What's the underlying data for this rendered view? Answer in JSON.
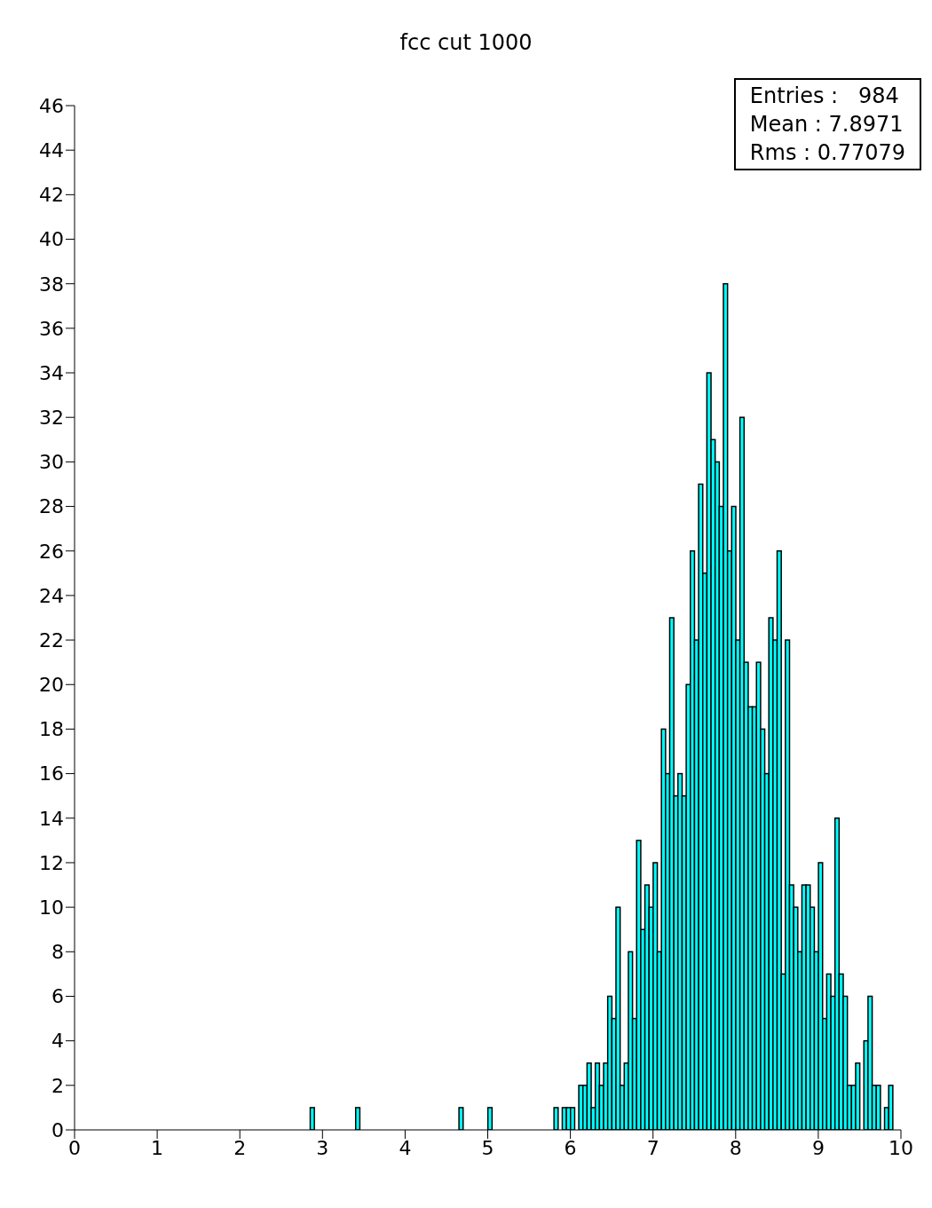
{
  "chart_data": {
    "type": "histogram",
    "title": "fcc cut 1000",
    "annotations": [
      "Entries :   984",
      "Mean : 7.8971",
      "Rms : 0.77079"
    ],
    "bins": [
      0,
      0.05,
      0.1,
      0.15,
      0.2,
      0.25,
      0.3,
      0.35,
      0.4,
      0.45,
      0.5,
      0.55,
      0.6,
      0.65,
      0.7,
      0.75,
      0.8,
      0.85,
      0.9,
      0.95,
      1,
      1.05,
      1.1,
      1.15,
      1.2,
      1.25,
      1.3,
      1.35,
      1.4,
      1.45,
      1.5,
      1.55,
      1.6,
      1.65,
      1.7,
      1.75,
      1.8,
      1.85,
      1.9,
      1.95,
      2,
      2.05,
      2.1,
      2.15,
      2.2,
      2.25,
      2.3,
      2.35,
      2.4,
      2.45,
      2.5,
      2.55,
      2.6,
      2.65,
      2.7,
      2.75,
      2.8,
      2.85,
      2.9,
      2.95,
      3,
      3.05,
      3.1,
      3.15,
      3.2,
      3.25,
      3.3,
      3.35,
      3.4,
      3.45,
      3.5,
      3.55,
      3.6,
      3.65,
      3.7,
      3.75,
      3.8,
      3.85,
      3.9,
      3.95,
      4,
      4.05,
      4.1,
      4.15,
      4.2,
      4.25,
      4.3,
      4.35,
      4.4,
      4.45,
      4.5,
      4.55,
      4.6,
      4.65,
      4.7,
      4.75,
      4.8,
      4.85,
      4.9,
      4.95,
      5,
      5.05,
      5.1,
      5.15,
      5.2,
      5.25,
      5.3,
      5.35,
      5.4,
      5.45,
      5.5,
      5.55,
      5.6,
      5.65,
      5.7,
      5.75,
      5.8,
      5.85,
      5.9,
      5.95,
      6,
      6.05,
      6.1,
      6.15,
      6.2,
      6.25,
      6.3,
      6.35,
      6.4,
      6.45,
      6.5,
      6.55,
      6.6,
      6.65,
      6.7,
      6.75,
      6.8,
      6.85,
      6.9,
      6.95,
      7,
      7.05,
      7.1,
      7.15,
      7.2,
      7.25,
      7.3,
      7.35,
      7.4,
      7.45,
      7.5,
      7.55,
      7.6,
      7.65,
      7.7,
      7.75,
      7.8,
      7.85,
      7.9,
      7.95,
      8,
      8.05,
      8.1,
      8.15,
      8.2,
      8.25,
      8.3,
      8.35,
      8.4,
      8.45,
      8.5,
      8.55,
      8.6,
      8.65,
      8.7,
      8.75,
      8.8,
      8.85,
      8.9,
      8.95,
      9,
      9.05,
      9.1,
      9.15,
      9.2,
      9.25,
      9.3,
      9.35,
      9.4,
      9.45,
      9.5,
      9.55,
      9.6,
      9.65,
      9.7,
      9.75,
      9.8,
      9.85,
      9.9,
      9.95,
      10
    ],
    "values": [
      0,
      0,
      0,
      0,
      0,
      0,
      0,
      0,
      0,
      0,
      0,
      0,
      0,
      0,
      0,
      0,
      0,
      0,
      0,
      0,
      0,
      0,
      0,
      0,
      0,
      0,
      0,
      0,
      0,
      0,
      0,
      0,
      0,
      0,
      0,
      0,
      0,
      0,
      0,
      0,
      0,
      0,
      0,
      0,
      0,
      0,
      0,
      0,
      0,
      0,
      0,
      0,
      0,
      0,
      0,
      0,
      0,
      1,
      0,
      0,
      0,
      0,
      0,
      0,
      0,
      0,
      0,
      0,
      1,
      0,
      0,
      0,
      0,
      0,
      0,
      0,
      0,
      0,
      0,
      0,
      0,
      0,
      0,
      0,
      0,
      0,
      0,
      0,
      0,
      0,
      0,
      0,
      0,
      1,
      0,
      0,
      0,
      0,
      0,
      0,
      1,
      0,
      0,
      0,
      0,
      0,
      0,
      0,
      0,
      0,
      0,
      0,
      0,
      0,
      0,
      0,
      1,
      0,
      1,
      1,
      1,
      0,
      2,
      2,
      3,
      1,
      3,
      2,
      3,
      6,
      5,
      10,
      2,
      3,
      8,
      5,
      13,
      9,
      11,
      10,
      12,
      8,
      18,
      16,
      23,
      15,
      16,
      15,
      20,
      26,
      22,
      29,
      25,
      34,
      31,
      30,
      28,
      38,
      26,
      28,
      22,
      32,
      21,
      19,
      19,
      21,
      18,
      16,
      23,
      22,
      26,
      7,
      22,
      11,
      10,
      8,
      11,
      11,
      10,
      8,
      12,
      5,
      7,
      6,
      14,
      7,
      6,
      2,
      2,
      3,
      0,
      4,
      6,
      2,
      2,
      0,
      1,
      2,
      0,
      0
    ],
    "color": "#00ffff",
    "xlim": [
      0,
      10
    ],
    "xticks": [
      0,
      1,
      2,
      3,
      4,
      5,
      6,
      7,
      8,
      9,
      10
    ],
    "ylim": [
      0,
      46
    ],
    "yticks": [
      0,
      2,
      4,
      6,
      8,
      10,
      12,
      14,
      16,
      18,
      20,
      22,
      24,
      26,
      28,
      30,
      32,
      34,
      36,
      38,
      40,
      42,
      44,
      46
    ]
  }
}
